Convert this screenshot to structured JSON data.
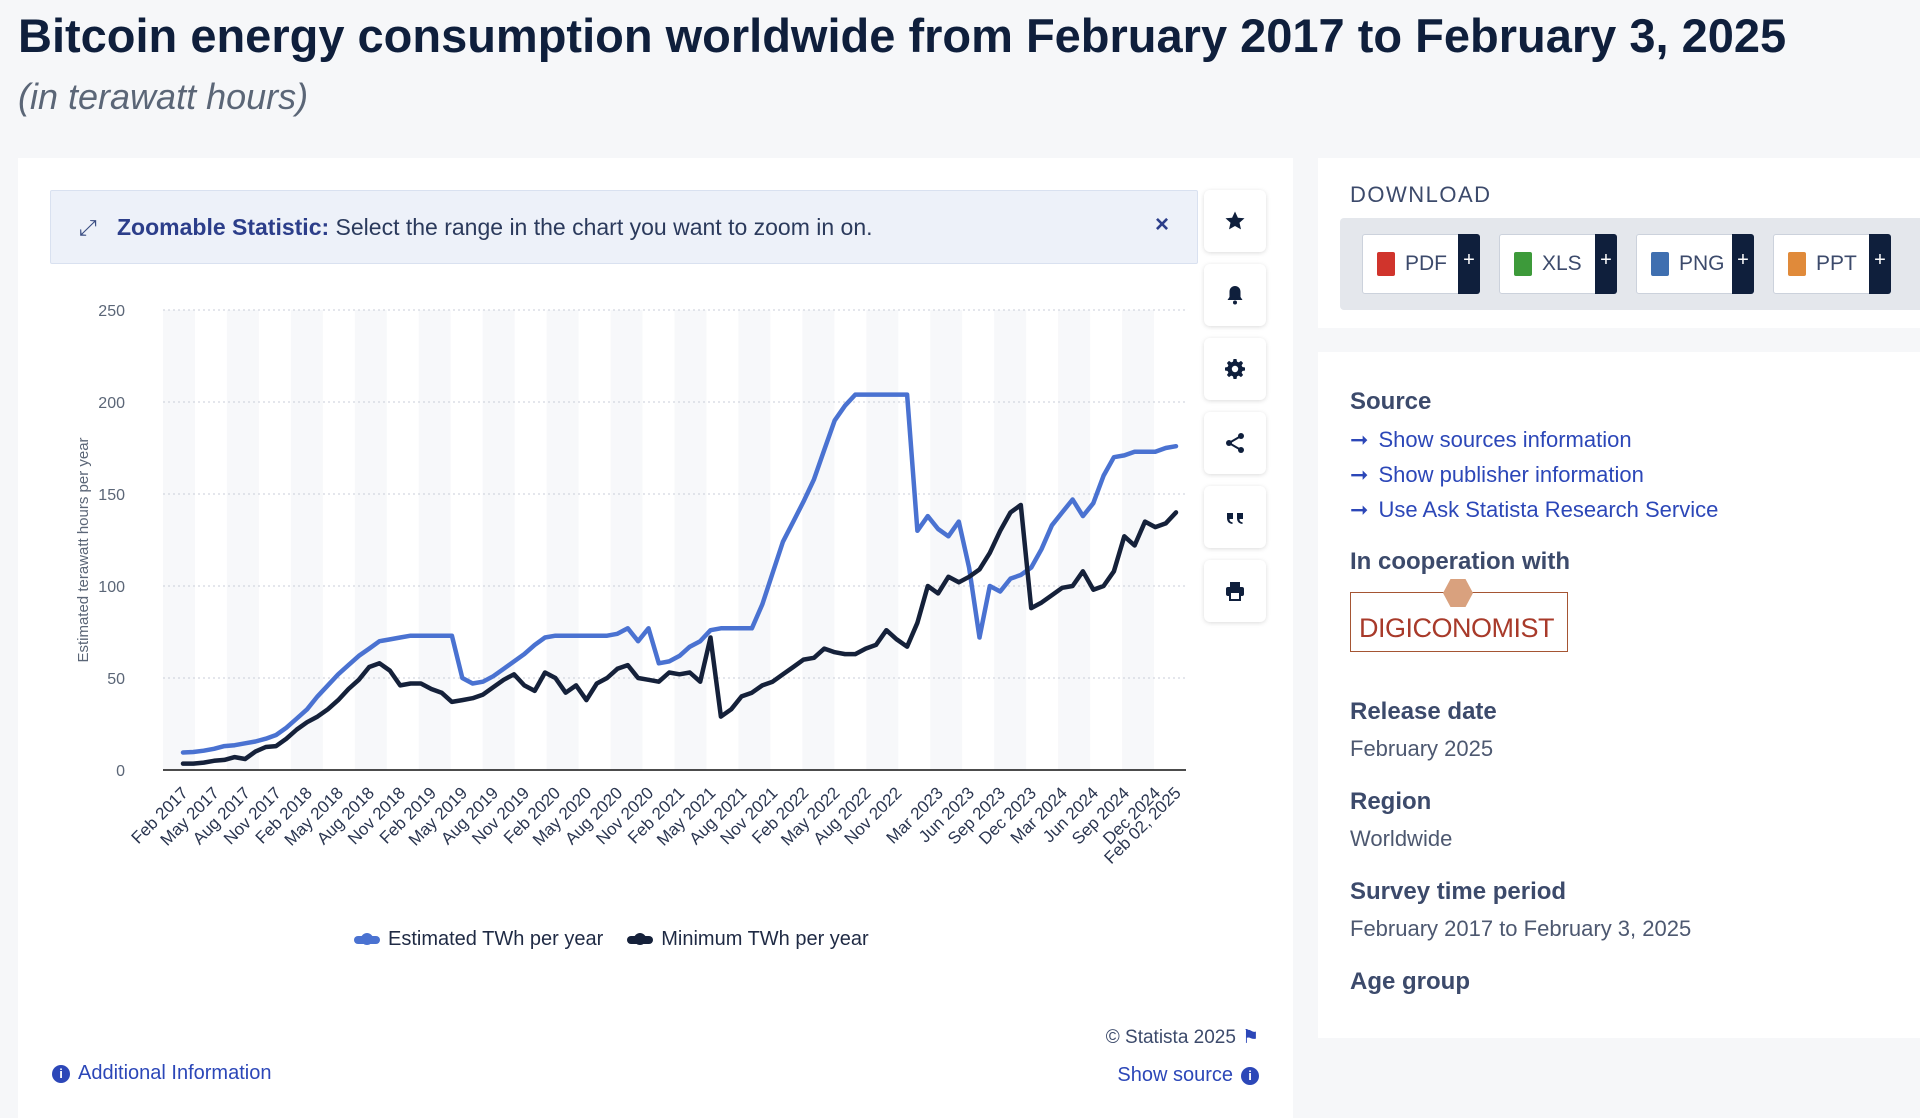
{
  "header": {
    "title": "Bitcoin energy consumption worldwide from February 2017 to February 3, 2025",
    "subtitle": "(in terawatt hours)"
  },
  "zoom_banner": {
    "bold": "Zoomable Statistic:",
    "text": " Select the range in the chart you want to zoom in on.",
    "close": "×"
  },
  "toolbar": {
    "icons": [
      "star-icon",
      "bell-icon",
      "gear-icon",
      "share-icon",
      "quote-icon",
      "print-icon"
    ]
  },
  "chart_data": {
    "type": "line",
    "title": "",
    "xlabel": "",
    "ylabel": "Estimated terawatt hours per year",
    "ylim": [
      0,
      250
    ],
    "yticks": [
      0,
      50,
      100,
      150,
      200,
      250
    ],
    "grid": true,
    "legend_position": "bottom-center",
    "x_tick_labels": [
      "Feb 2017",
      "May 2017",
      "Aug 2017",
      "Nov 2017",
      "Feb 2018",
      "May 2018",
      "Aug 2018",
      "Nov 2018",
      "Feb 2019",
      "May 2019",
      "Aug 2019",
      "Nov 2019",
      "Feb 2020",
      "May 2020",
      "Aug 2020",
      "Nov 2020",
      "Feb 2021",
      "May 2021",
      "Aug 2021",
      "Nov 2021",
      "Feb 2022",
      "May 2022",
      "Aug 2022",
      "Nov 2022",
      "Mar 2023",
      "Jun 2023",
      "Sep 2023",
      "Dec 2023",
      "Mar 2024",
      "Jun 2024",
      "Sep 2024",
      "Dec 2024",
      "Feb 02, 2025"
    ],
    "x_tick_positions": [
      0,
      3,
      6,
      9,
      12,
      15,
      18,
      21,
      24,
      27,
      30,
      33,
      36,
      39,
      42,
      45,
      48,
      51,
      54,
      57,
      60,
      63,
      66,
      69,
      73,
      76,
      79,
      82,
      85,
      88,
      91,
      94,
      96
    ],
    "x_count": 97,
    "series": [
      {
        "name": "Estimated TWh per year",
        "color": "#4a72d1",
        "values": [
          9.5,
          9.8,
          10.5,
          11.5,
          13,
          13.5,
          14.5,
          15.5,
          17,
          19,
          23,
          28,
          33,
          40,
          46,
          52,
          57,
          62,
          66,
          70,
          71,
          72,
          73,
          73,
          73,
          73,
          73,
          50,
          47,
          48,
          51,
          55,
          59,
          63,
          68,
          72,
          73,
          73,
          73,
          73,
          73,
          73,
          74,
          77,
          70,
          77,
          58,
          59,
          62,
          67,
          70,
          76,
          77,
          77,
          77,
          77,
          90,
          107,
          124,
          135,
          146,
          158,
          174,
          190,
          198,
          204,
          204,
          204,
          204,
          204,
          204,
          130,
          138,
          131,
          127,
          135,
          110,
          72,
          100,
          97,
          104,
          106,
          110,
          120,
          133,
          140,
          147,
          138,
          145,
          160,
          170,
          171,
          173,
          173,
          173,
          175,
          176
        ]
      },
      {
        "name": "Minimum TWh per year",
        "color": "#15213a",
        "values": [
          3.5,
          3.5,
          4,
          5,
          5.5,
          7,
          6,
          10,
          12.5,
          13,
          17,
          22,
          26,
          29,
          33,
          38,
          44,
          49,
          56,
          58,
          54,
          46,
          47,
          47,
          44,
          42,
          37,
          38,
          39,
          41,
          45,
          49,
          52,
          46,
          43,
          53,
          50,
          42,
          46,
          38,
          47,
          50,
          55,
          57,
          50,
          49,
          48,
          53,
          52,
          53,
          48,
          72,
          29,
          33,
          40,
          42,
          46,
          48,
          52,
          56,
          60,
          61,
          66,
          64,
          63,
          63,
          66,
          68,
          76,
          71,
          67,
          80,
          100,
          96,
          105,
          102,
          105,
          109,
          118,
          130,
          140,
          144,
          88,
          91,
          95,
          99,
          100,
          108,
          98,
          100,
          108,
          127,
          122,
          135,
          132,
          134,
          140
        ]
      }
    ]
  },
  "footer": {
    "credit": "© Statista 2025",
    "show_source": "Show source",
    "additional_info": "Additional Information"
  },
  "download": {
    "title": "DOWNLOAD",
    "buttons": [
      {
        "label": "PDF",
        "color": "#d0342c"
      },
      {
        "label": "XLS",
        "color": "#3d9a3a"
      },
      {
        "label": "PNG",
        "color": "#3f6fb0"
      },
      {
        "label": "PPT",
        "color": "#e08a3a"
      }
    ],
    "plus": "+"
  },
  "info": {
    "source_heading": "Source",
    "links": [
      "Show sources information",
      "Show publisher information",
      "Use Ask Statista Research Service"
    ],
    "cooperation_heading": "In cooperation with",
    "logo_text": "DIGICONOMIST",
    "release_heading": "Release date",
    "release_value": "February 2025",
    "region_heading": "Region",
    "region_value": "Worldwide",
    "survey_heading": "Survey time period",
    "survey_value": "February 2017 to February 3, 2025",
    "age_heading": "Age group"
  }
}
